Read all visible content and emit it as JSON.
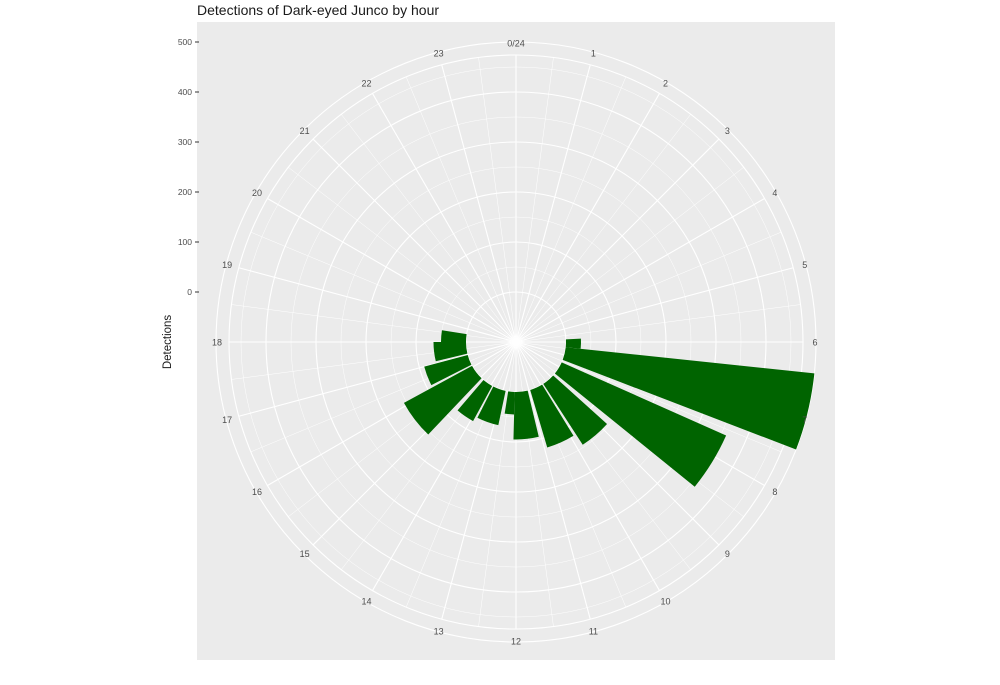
{
  "chart_data": {
    "type": "bar",
    "coord": "polar",
    "title": "Detections of Dark-eyed Junco by hour",
    "xlabel": "",
    "ylabel": "Detections",
    "categories": [
      "0/24",
      "1",
      "2",
      "3",
      "4",
      "5",
      "6",
      "7",
      "8",
      "9",
      "10",
      "11",
      "12",
      "13",
      "14",
      "15",
      "16",
      "17",
      "18",
      "19",
      "20",
      "21",
      "22",
      "23"
    ],
    "radial_ticks": [
      0,
      100,
      200,
      300,
      400,
      500
    ],
    "ylim": [
      -100,
      550
    ],
    "grid": true,
    "colors": {
      "bar": "#006400",
      "panel": "#ebebeb",
      "grid": "#ffffff"
    },
    "bars": [
      {
        "start": 5.8,
        "end": 6.4,
        "value": 30
      },
      {
        "start": 6.4,
        "end": 7.4,
        "value": 500
      },
      {
        "start": 7.6,
        "end": 8.6,
        "value": 360
      },
      {
        "start": 8.8,
        "end": 9.8,
        "value": 145
      },
      {
        "start": 9.9,
        "end": 10.9,
        "value": 120
      },
      {
        "start": 11.1,
        "end": 12.1,
        "value": 95
      },
      {
        "start": 12.1,
        "end": 12.6,
        "value": 45
      },
      {
        "start": 12.8,
        "end": 13.8,
        "value": 70
      },
      {
        "start": 13.9,
        "end": 14.7,
        "value": 80
      },
      {
        "start": 14.9,
        "end": 16.1,
        "value": 155
      },
      {
        "start": 16.2,
        "end": 17.0,
        "value": 90
      },
      {
        "start": 17.1,
        "end": 18.0,
        "value": 65
      },
      {
        "start": 18.0,
        "end": 18.6,
        "value": 50
      }
    ]
  }
}
